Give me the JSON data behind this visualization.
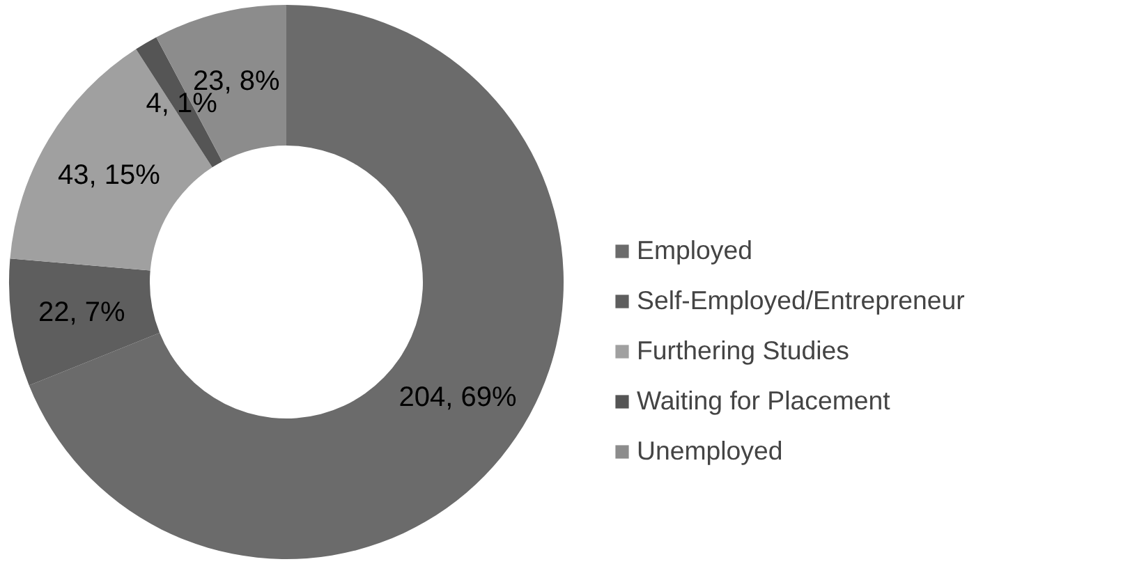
{
  "chart_data": {
    "type": "donut",
    "categories": [
      "Employed",
      "Self-Employed/Entrepreneur",
      "Furthering Studies",
      "Waiting for Placement",
      "Unemployed"
    ],
    "values": [
      204,
      22,
      43,
      4,
      23
    ],
    "colors": [
      "#6b6b6b",
      "#5e5e5e",
      "#a0a0a0",
      "#555555",
      "#8c8c8c"
    ],
    "value_labels": [
      "204, 69%",
      "22, 7%",
      "43, 15%",
      "4, 1%",
      "23, 8%"
    ],
    "legend": "right"
  }
}
